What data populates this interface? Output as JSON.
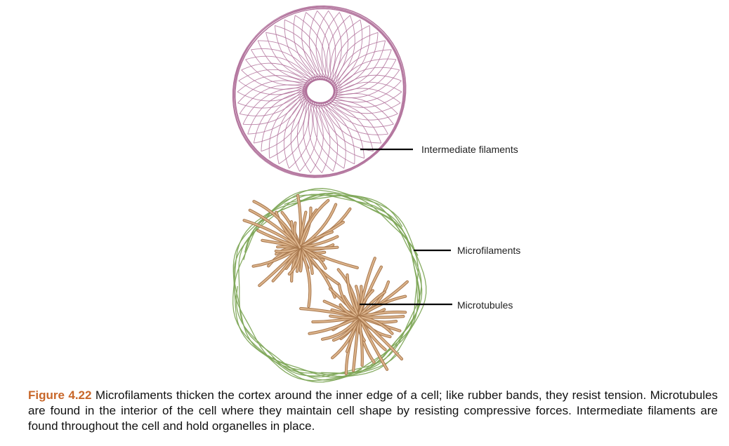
{
  "labels": {
    "intermediate_filaments": "Intermediate filaments",
    "microfilaments": "Microfilaments",
    "microtubules": "Microtubules"
  },
  "caption": {
    "figure_number": "Figure 4.22",
    "text": "Microfilaments thicken the cortex around the inner edge of a cell; like rubber bands, they resist tension. Microtubules are found in the interior of the cell where they maintain cell shape by resisting compressive forces. Intermediate filaments are found throughout the cell and hold organelles in place."
  },
  "colors": {
    "intermediate_filaments": "#b0709a",
    "microfilaments": "#7fa85a",
    "microtubules_outline": "#a8784e",
    "microtubules_fill": "#dcb48c",
    "figure_number": "#c8672a"
  }
}
